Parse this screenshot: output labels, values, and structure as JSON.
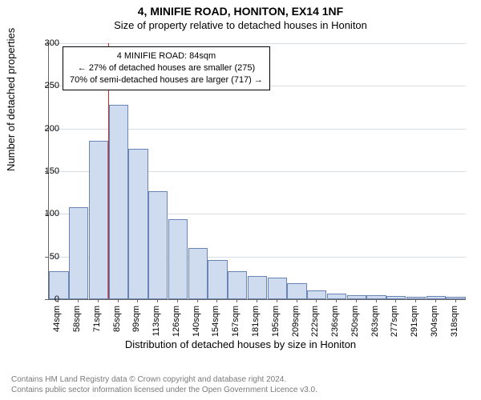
{
  "titles": {
    "main": "4, MINIFIE ROAD, HONITON, EX14 1NF",
    "sub": "Size of property relative to detached houses in Honiton"
  },
  "axes": {
    "ylabel": "Number of detached properties",
    "xlabel": "Distribution of detached houses by size in Honiton",
    "ylim_max": 300,
    "ytick_step": 50,
    "yticks": [
      0,
      50,
      100,
      150,
      200,
      250,
      300
    ]
  },
  "chart": {
    "type": "histogram",
    "bar_fill": "#cfdcf0",
    "bar_stroke": "#6a85b5",
    "grid_color": "#d7dce2",
    "background": "#ffffff",
    "marker_color": "#d62728",
    "marker_x_index": 3,
    "categories": [
      "44sqm",
      "58sqm",
      "71sqm",
      "85sqm",
      "99sqm",
      "113sqm",
      "126sqm",
      "140sqm",
      "154sqm",
      "167sqm",
      "181sqm",
      "195sqm",
      "209sqm",
      "222sqm",
      "236sqm",
      "250sqm",
      "263sqm",
      "277sqm",
      "291sqm",
      "304sqm",
      "318sqm"
    ],
    "values": [
      33,
      108,
      186,
      228,
      176,
      127,
      94,
      60,
      46,
      33,
      27,
      25,
      19,
      10,
      7,
      5,
      5,
      4,
      3,
      4,
      3
    ]
  },
  "annotation": {
    "line1": "4 MINIFIE ROAD: 84sqm",
    "line2": "← 27% of detached houses are smaller (275)",
    "line3": "70% of semi-detached houses are larger (717) →"
  },
  "footer": {
    "line1": "Contains HM Land Registry data © Crown copyright and database right 2024.",
    "line2": "Contains public sector information licensed under the Open Government Licence v3.0."
  }
}
